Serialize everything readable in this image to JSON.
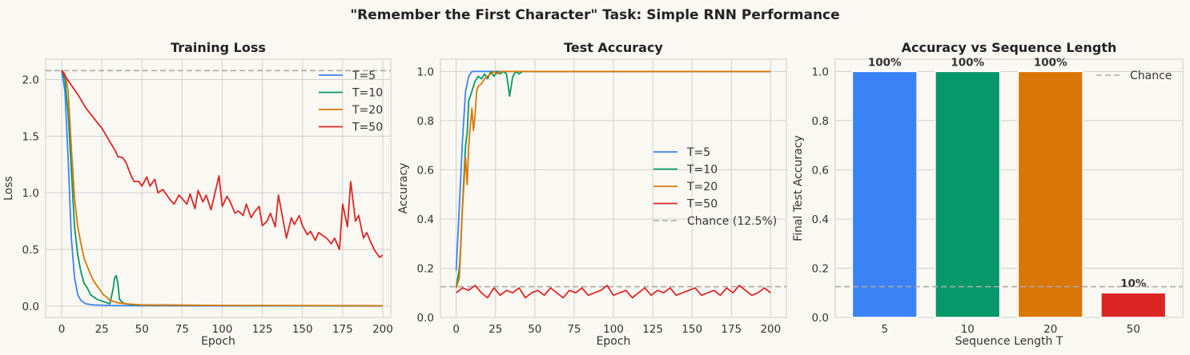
{
  "suptitle": "\"Remember the First Character\" Task: Simple RNN Performance",
  "colors": {
    "T5": "#3b82f6",
    "T10": "#069868",
    "T20": "#d97706",
    "T50": "#dc2626",
    "chance": "#aaaaaa"
  },
  "chart_data": [
    {
      "type": "line",
      "title": "Training Loss",
      "xlabel": "Epoch",
      "ylabel": "Loss",
      "xlim": [
        -10,
        205
      ],
      "ylim": [
        -0.1,
        2.18
      ],
      "xticks": [
        "0",
        "25",
        "50",
        "75",
        "100",
        "125",
        "150",
        "175",
        "200"
      ],
      "yticks": [
        "0.0",
        "0.5",
        "1.0",
        "1.5",
        "2.0"
      ],
      "hline": 2.079,
      "legend": "top-right",
      "series": [
        {
          "name": "T=5",
          "x": [
            0,
            2,
            4,
            6,
            8,
            10,
            12,
            15,
            20,
            30,
            50,
            100,
            200
          ],
          "values": [
            2.08,
            1.9,
            1.3,
            0.6,
            0.25,
            0.1,
            0.05,
            0.02,
            0.01,
            0.005,
            0.003,
            0.002,
            0.001
          ]
        },
        {
          "name": "T=10",
          "x": [
            0,
            2,
            4,
            6,
            8,
            10,
            12,
            14,
            16,
            18,
            20,
            22,
            24,
            26,
            28,
            30,
            32,
            33,
            34,
            35,
            36,
            38,
            40,
            45,
            50,
            100,
            200
          ],
          "values": [
            2.08,
            2.0,
            1.7,
            1.2,
            0.7,
            0.45,
            0.3,
            0.2,
            0.16,
            0.1,
            0.08,
            0.06,
            0.05,
            0.04,
            0.03,
            0.02,
            0.15,
            0.25,
            0.27,
            0.2,
            0.06,
            0.03,
            0.02,
            0.01,
            0.01,
            0.005,
            0.003
          ]
        },
        {
          "name": "T=20",
          "x": [
            0,
            2,
            4,
            6,
            8,
            10,
            12,
            14,
            16,
            18,
            20,
            22,
            24,
            26,
            28,
            30,
            35,
            40,
            50,
            100,
            200
          ],
          "values": [
            2.08,
            2.05,
            1.9,
            1.4,
            0.95,
            0.7,
            0.55,
            0.42,
            0.35,
            0.28,
            0.22,
            0.18,
            0.14,
            0.1,
            0.08,
            0.05,
            0.03,
            0.02,
            0.01,
            0.005,
            0.003
          ]
        },
        {
          "name": "T=50",
          "x": [
            0,
            5,
            10,
            15,
            20,
            25,
            28,
            30,
            33,
            35,
            38,
            40,
            43,
            45,
            48,
            50,
            53,
            55,
            58,
            60,
            63,
            65,
            68,
            70,
            73,
            75,
            78,
            80,
            83,
            85,
            88,
            90,
            93,
            95,
            98,
            100,
            103,
            105,
            108,
            110,
            113,
            115,
            118,
            120,
            123,
            125,
            128,
            130,
            133,
            135,
            138,
            140,
            143,
            145,
            148,
            150,
            153,
            155,
            158,
            160,
            163,
            165,
            168,
            170,
            173,
            175,
            178,
            180,
            183,
            185,
            188,
            190,
            193,
            195,
            198,
            200
          ],
          "values": [
            2.08,
            1.97,
            1.87,
            1.75,
            1.66,
            1.57,
            1.5,
            1.45,
            1.38,
            1.32,
            1.31,
            1.27,
            1.16,
            1.1,
            1.1,
            1.06,
            1.14,
            1.06,
            1.12,
            1.0,
            1.03,
            0.99,
            0.93,
            0.9,
            0.98,
            0.95,
            0.9,
            0.99,
            0.86,
            1.02,
            0.92,
            0.98,
            0.85,
            0.97,
            1.15,
            0.88,
            0.97,
            0.92,
            0.82,
            0.84,
            0.8,
            0.9,
            0.78,
            0.83,
            0.88,
            0.71,
            0.75,
            0.82,
            0.7,
            0.98,
            0.75,
            0.6,
            0.78,
            0.72,
            0.8,
            0.71,
            0.63,
            0.66,
            0.58,
            0.65,
            0.62,
            0.6,
            0.55,
            0.6,
            0.5,
            0.9,
            0.7,
            1.1,
            0.75,
            0.8,
            0.6,
            0.65,
            0.55,
            0.49,
            0.43,
            0.45
          ]
        }
      ]
    },
    {
      "type": "line",
      "title": "Test Accuracy",
      "xlabel": "Epoch",
      "ylabel": "Accuracy",
      "xlim": [
        -10,
        210
      ],
      "ylim": [
        0.0,
        1.05
      ],
      "xticks": [
        "0",
        "25",
        "50",
        "75",
        "100",
        "125",
        "150",
        "175",
        "200"
      ],
      "yticks": [
        "0.0",
        "0.2",
        "0.4",
        "0.6",
        "0.8",
        "1.0"
      ],
      "hline": 0.125,
      "legend": "center-right",
      "series": [
        {
          "name": "T=5",
          "x": [
            0,
            2,
            4,
            6,
            8,
            10,
            12,
            15,
            20,
            200
          ],
          "values": [
            0.19,
            0.45,
            0.72,
            0.92,
            0.98,
            1.0,
            1.0,
            1.0,
            1.0,
            1.0
          ]
        },
        {
          "name": "T=10",
          "x": [
            0,
            2,
            3,
            4,
            5,
            6,
            7,
            8,
            9,
            10,
            12,
            14,
            16,
            18,
            20,
            22,
            24,
            26,
            28,
            30,
            32,
            34,
            36,
            38,
            40,
            42,
            200
          ],
          "values": [
            0.12,
            0.2,
            0.3,
            0.45,
            0.58,
            0.7,
            0.75,
            0.88,
            0.9,
            0.92,
            0.96,
            0.98,
            0.97,
            0.99,
            0.97,
            1.0,
            0.98,
            1.0,
            0.99,
            1.0,
            0.99,
            0.9,
            0.98,
            1.0,
            0.99,
            1.0,
            1.0
          ]
        },
        {
          "name": "T=20",
          "x": [
            0,
            2,
            3,
            4,
            5,
            6,
            7,
            8,
            9,
            10,
            11,
            12,
            13,
            14,
            16,
            18,
            20,
            22,
            24,
            26,
            28,
            30,
            200
          ],
          "values": [
            0.12,
            0.16,
            0.3,
            0.45,
            0.55,
            0.65,
            0.54,
            0.7,
            0.78,
            0.85,
            0.76,
            0.82,
            0.92,
            0.94,
            0.95,
            0.97,
            0.98,
            0.99,
            1.0,
            0.99,
            1.0,
            1.0,
            1.0
          ]
        },
        {
          "name": "T=50",
          "x": [
            0,
            4,
            8,
            12,
            16,
            20,
            24,
            28,
            32,
            36,
            40,
            44,
            48,
            52,
            56,
            60,
            64,
            68,
            72,
            76,
            80,
            84,
            88,
            92,
            96,
            100,
            104,
            108,
            112,
            116,
            120,
            124,
            128,
            132,
            136,
            140,
            144,
            148,
            152,
            156,
            160,
            164,
            168,
            172,
            176,
            180,
            184,
            188,
            192,
            196,
            200
          ],
          "values": [
            0.1,
            0.12,
            0.11,
            0.13,
            0.1,
            0.08,
            0.12,
            0.09,
            0.11,
            0.1,
            0.12,
            0.08,
            0.1,
            0.11,
            0.09,
            0.12,
            0.1,
            0.08,
            0.11,
            0.1,
            0.12,
            0.09,
            0.1,
            0.11,
            0.13,
            0.09,
            0.1,
            0.11,
            0.08,
            0.1,
            0.12,
            0.09,
            0.11,
            0.1,
            0.12,
            0.09,
            0.1,
            0.11,
            0.12,
            0.09,
            0.1,
            0.11,
            0.09,
            0.12,
            0.1,
            0.13,
            0.11,
            0.09,
            0.1,
            0.12,
            0.1
          ]
        }
      ]
    },
    {
      "type": "bar",
      "title": "Accuracy vs Sequence Length",
      "xlabel": "Sequence Length T",
      "ylabel": "Final Test Accuracy",
      "ylim": [
        0.0,
        1.05
      ],
      "yticks": [
        "0.0",
        "0.2",
        "0.4",
        "0.6",
        "0.8",
        "1.0"
      ],
      "categories": [
        "5",
        "10",
        "20",
        "50"
      ],
      "values": [
        1.0,
        1.0,
        1.0,
        0.1
      ],
      "data_labels": [
        "100%",
        "100%",
        "100%",
        "10%"
      ],
      "hline": 0.125,
      "legend": "top-right"
    }
  ],
  "legends": {
    "loss": [
      "T=5",
      "T=10",
      "T=20",
      "T=50"
    ],
    "accuracy": [
      "T=5",
      "T=10",
      "T=20",
      "T=50",
      "Chance (12.5%)"
    ],
    "bars": [
      "Chance"
    ]
  }
}
